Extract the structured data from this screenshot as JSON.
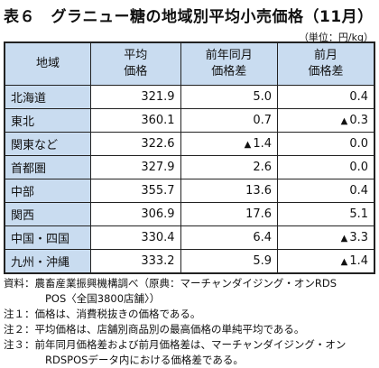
{
  "title": "表６　グラニュー糖の地域別平均小売価格（11月）",
  "unit": "（単位：円/kg）",
  "table": {
    "headers": [
      {
        "line1": "地域",
        "line2": ""
      },
      {
        "line1": "平均",
        "line2": "価格"
      },
      {
        "line1": "前年同月",
        "line2": "価格差"
      },
      {
        "line1": "前月",
        "line2": "価格差"
      }
    ],
    "rows": [
      {
        "region": "北海道",
        "avg": "321.9",
        "yoy": "5.0",
        "mom": "0.4",
        "yoy_neg": false,
        "mom_neg": false
      },
      {
        "region": "東北",
        "avg": "360.1",
        "yoy": "0.7",
        "mom": "0.3",
        "yoy_neg": false,
        "mom_neg": true
      },
      {
        "region": "関東など",
        "avg": "322.6",
        "yoy": "1.4",
        "mom": "0.0",
        "yoy_neg": true,
        "mom_neg": false
      },
      {
        "region": "首都圏",
        "avg": "327.9",
        "yoy": "2.6",
        "mom": "0.0",
        "yoy_neg": false,
        "mom_neg": false
      },
      {
        "region": "中部",
        "avg": "355.7",
        "yoy": "13.6",
        "mom": "0.4",
        "yoy_neg": false,
        "mom_neg": false
      },
      {
        "region": "関西",
        "avg": "306.9",
        "yoy": "17.6",
        "mom": "5.1",
        "yoy_neg": false,
        "mom_neg": false
      },
      {
        "region": "中国・四国",
        "avg": "330.4",
        "yoy": "6.4",
        "mom": "3.3",
        "yoy_neg": false,
        "mom_neg": true
      },
      {
        "region": "九州・沖縄",
        "avg": "333.2",
        "yoy": "5.9",
        "mom": "1.4",
        "yoy_neg": false,
        "mom_neg": true
      }
    ],
    "negative_marker": "▲"
  },
  "notes": {
    "source_line1": "資料：農畜産業振興機構調べ（原典：マーチャンダイジング・オンRDS",
    "source_line2": "POS〈全国3800店舗〉）",
    "note1": "注１：価格は、消費税抜きの価格である。",
    "note2": "注２：平均価格は、店舗別商品別の最高価格の単純平均である。",
    "note3_line1": "注３：前年同月価格差および前月価格差は、マーチャンダイジング・オン",
    "note3_line2": "RDSPOSデータ内における価格差である。"
  }
}
